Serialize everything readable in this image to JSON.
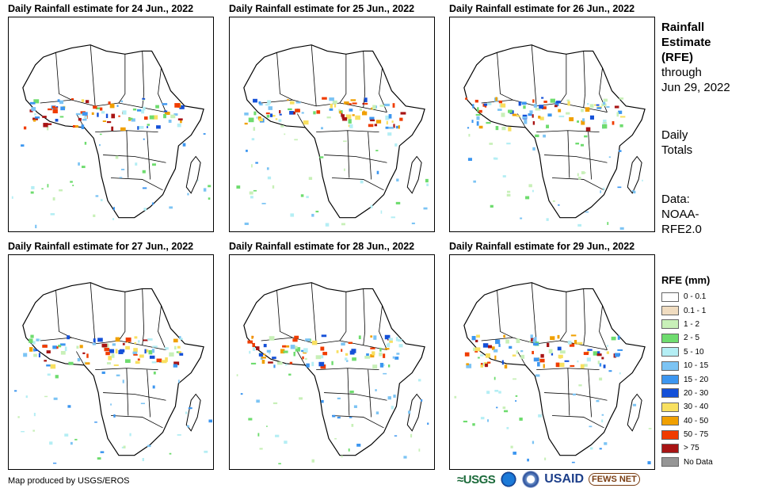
{
  "panels": [
    {
      "title": "Daily Rainfall estimate for 24 Jun., 2022",
      "seed": 24
    },
    {
      "title": "Daily Rainfall estimate for 25 Jun., 2022",
      "seed": 25
    },
    {
      "title": "Daily Rainfall estimate for 26 Jun., 2022",
      "seed": 26
    },
    {
      "title": "Daily Rainfall estimate for 27 Jun., 2022",
      "seed": 27
    },
    {
      "title": "Daily Rainfall estimate for 28 Jun., 2022",
      "seed": 28
    },
    {
      "title": "Daily Rainfall estimate for 29 Jun., 2022",
      "seed": 29
    }
  ],
  "side": {
    "title_line1": "Rainfall",
    "title_line2": "Estimate",
    "title_line3": "(RFE)",
    "through": "through",
    "date": "Jun 29, 2022",
    "totals_line1": "Daily",
    "totals_line2": "Totals",
    "data_line1": "Data:",
    "data_line2": "NOAA-",
    "data_line3": "RFE2.0"
  },
  "legend": {
    "title": "RFE (mm)",
    "items": [
      {
        "label": "0 - 0.1",
        "color": "#ffffff"
      },
      {
        "label": "0.1 - 1",
        "color": "#f0dcc0"
      },
      {
        "label": "1 - 2",
        "color": "#c8f0b8"
      },
      {
        "label": "2 - 5",
        "color": "#6edc6e"
      },
      {
        "label": "5 - 10",
        "color": "#b4eef4"
      },
      {
        "label": "10 - 15",
        "color": "#7cc4f4"
      },
      {
        "label": "15 - 20",
        "color": "#3c96f0"
      },
      {
        "label": "20 - 30",
        "color": "#1450d8"
      },
      {
        "label": "30 - 40",
        "color": "#f8e060"
      },
      {
        "label": "40 - 50",
        "color": "#f0a000"
      },
      {
        "label": "50 - 75",
        "color": "#f03c00"
      },
      {
        "label": "> 75",
        "color": "#a81414"
      },
      {
        "label": "No Data",
        "color": "#969696"
      }
    ]
  },
  "credit": "Map produced by USGS/EROS",
  "logos": {
    "usgs": "≈USGS",
    "usaid": "USAID",
    "fews": "FEWS NET"
  }
}
